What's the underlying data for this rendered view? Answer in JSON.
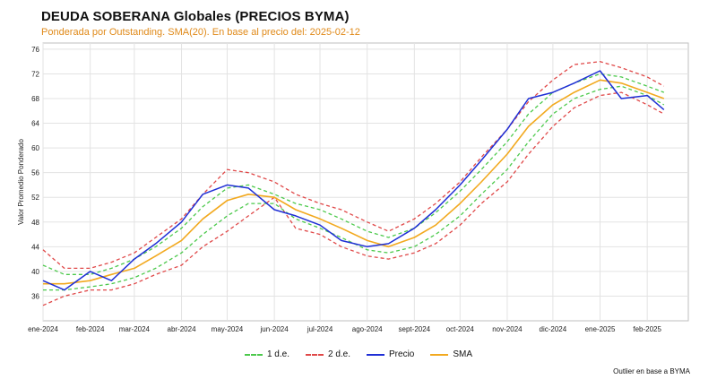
{
  "title": "DEUDA SOBERANA Globales (PRECIOS BYMA)",
  "subtitle": "Ponderada por Outstanding. SMA(20). En base al precio del: 2025-02-12",
  "footnote": "Outlier en base a BYMA",
  "colors": {
    "precio": "#1f2fd6",
    "sma": "#f2a91f",
    "sd1": "#4cc94c",
    "sd2": "#e04848",
    "grid": "#e3e3e3"
  },
  "chart_data": {
    "type": "line",
    "title": "DEUDA SOBERANA Globales (PRECIOS BYMA)",
    "subtitle": "Ponderada por Outstanding. SMA(20). En base al precio del: 2025-02-12",
    "xlabel": "",
    "ylabel": "Valor Promedio Ponderado",
    "ylim": [
      32,
      77
    ],
    "yticks": [
      36,
      40,
      44,
      48,
      52,
      56,
      60,
      64,
      68,
      72,
      76
    ],
    "x_ticks": [
      "ene-2024",
      "feb-2024",
      "mar-2024",
      "abr-2024",
      "may-2024",
      "jun-2024",
      "jul-2024",
      "ago-2024",
      "sept-2024",
      "oct-2024",
      "nov-2024",
      "dic-2024",
      "ene-2025",
      "feb-2025"
    ],
    "grid": true,
    "legend_position": "bottom-center",
    "x": [
      "2024-01-01",
      "2024-01-15",
      "2024-02-01",
      "2024-02-15",
      "2024-03-01",
      "2024-03-15",
      "2024-04-01",
      "2024-04-15",
      "2024-05-01",
      "2024-05-15",
      "2024-06-01",
      "2024-06-15",
      "2024-07-01",
      "2024-07-15",
      "2024-08-01",
      "2024-08-15",
      "2024-09-01",
      "2024-09-15",
      "2024-10-01",
      "2024-10-15",
      "2024-11-01",
      "2024-11-15",
      "2024-12-01",
      "2024-12-15",
      "2025-01-01",
      "2025-01-15",
      "2025-02-01",
      "2025-02-12"
    ],
    "series": [
      {
        "name": "1 d.e.",
        "style": "dashed-green",
        "upper": [
          41.0,
          39.5,
          39.5,
          40.5,
          42.0,
          44.0,
          47.0,
          50.5,
          53.5,
          54.0,
          52.5,
          51.0,
          50.0,
          48.5,
          46.5,
          45.5,
          47.0,
          49.5,
          53.0,
          56.5,
          61.0,
          65.5,
          69.0,
          70.5,
          72.0,
          71.5,
          70.0,
          69.0
        ],
        "lower": [
          37.0,
          37.0,
          37.5,
          38.0,
          39.0,
          40.5,
          43.0,
          46.0,
          49.0,
          51.0,
          51.0,
          48.5,
          47.0,
          45.5,
          43.5,
          43.0,
          44.0,
          46.0,
          49.0,
          52.5,
          56.5,
          61.0,
          65.5,
          68.0,
          69.5,
          70.0,
          68.5,
          67.0
        ]
      },
      {
        "name": "2 d.e.",
        "style": "dashed-red",
        "upper": [
          43.5,
          40.5,
          40.5,
          41.5,
          43.0,
          45.5,
          48.5,
          52.5,
          56.5,
          56.0,
          54.5,
          52.5,
          51.0,
          50.0,
          48.0,
          46.5,
          48.5,
          51.0,
          54.5,
          58.5,
          63.0,
          67.5,
          71.0,
          73.5,
          74.0,
          73.0,
          71.5,
          70.0
        ],
        "lower": [
          34.5,
          36.0,
          37.0,
          37.0,
          38.0,
          39.5,
          41.0,
          44.0,
          46.5,
          49.0,
          52.0,
          47.0,
          46.0,
          44.0,
          42.5,
          42.0,
          43.0,
          44.5,
          47.5,
          51.0,
          54.5,
          59.0,
          63.5,
          66.5,
          68.5,
          69.0,
          67.0,
          65.5
        ]
      },
      {
        "name": "Precio",
        "style": "solid-blue",
        "values": [
          38.5,
          37.0,
          40.0,
          38.5,
          42.0,
          44.5,
          48.0,
          52.5,
          54.0,
          53.5,
          50.0,
          49.0,
          47.5,
          45.0,
          44.0,
          44.5,
          47.0,
          50.0,
          54.0,
          58.0,
          63.0,
          68.0,
          69.0,
          70.5,
          72.5,
          68.0,
          68.5,
          66.2
        ]
      },
      {
        "name": "SMA",
        "style": "solid-orange",
        "values": [
          38.0,
          38.0,
          38.5,
          39.5,
          40.5,
          42.5,
          45.0,
          48.5,
          51.5,
          52.5,
          52.0,
          50.0,
          48.5,
          47.0,
          45.0,
          44.0,
          45.5,
          47.5,
          51.0,
          54.5,
          59.0,
          63.5,
          67.0,
          69.0,
          71.0,
          70.5,
          69.0,
          68.0
        ]
      }
    ]
  }
}
